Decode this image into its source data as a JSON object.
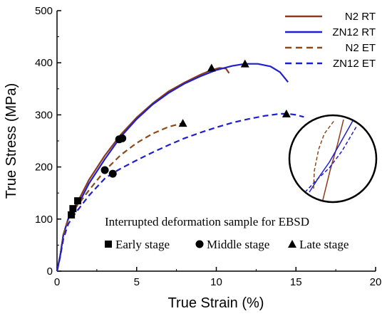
{
  "chart_data": {
    "type": "line",
    "xlabel": "True Strain (%)",
    "ylabel": "True Stress (MPa)",
    "xlim": [
      0,
      20
    ],
    "ylim": [
      0,
      500
    ],
    "xticks": [
      "0",
      "5",
      "10",
      "15",
      "20"
    ],
    "yticks": [
      "0",
      "100",
      "200",
      "300",
      "400",
      "500"
    ],
    "grid": false,
    "legend_position": "top-right",
    "series": [
      {
        "name": "N2 RT",
        "color": "#8b3a1a",
        "dash": "solid",
        "x": [
          0,
          0.2,
          0.4,
          0.7,
          1.0,
          1.5,
          2.0,
          3.0,
          4.0,
          5.0,
          6.0,
          7.0,
          8.0,
          9.0,
          9.7,
          10.2,
          10.6,
          10.8
        ],
        "y": [
          0,
          30,
          70,
          100,
          118,
          145,
          175,
          222,
          262,
          295,
          322,
          345,
          362,
          377,
          386,
          390,
          389,
          380
        ]
      },
      {
        "name": "ZN12 RT",
        "color": "#1f1fcf",
        "dash": "solid",
        "x": [
          0,
          0.2,
          0.4,
          0.7,
          1.0,
          1.5,
          2.0,
          3.0,
          4.0,
          5.0,
          6.0,
          7.0,
          8.0,
          9.0,
          10.0,
          11.0,
          11.8,
          12.6,
          13.4,
          14.0,
          14.5
        ],
        "y": [
          0,
          30,
          70,
          100,
          115,
          138,
          168,
          215,
          258,
          292,
          320,
          342,
          360,
          374,
          386,
          394,
          398,
          398,
          393,
          382,
          363
        ]
      },
      {
        "name": "N2 ET",
        "color": "#8b4a1a",
        "dash": "dashed",
        "x": [
          0,
          0.2,
          0.4,
          0.7,
          1.0,
          1.5,
          2.0,
          3.0,
          4.0,
          5.0,
          6.0,
          7.0,
          7.9
        ],
        "y": [
          0,
          30,
          70,
          100,
          115,
          135,
          155,
          193,
          223,
          246,
          264,
          277,
          284
        ]
      },
      {
        "name": "ZN12 ET",
        "color": "#1f1fcf",
        "dash": "dashed",
        "x": [
          0,
          0.2,
          0.4,
          0.7,
          1.0,
          1.5,
          2.0,
          3.0,
          3.5,
          4.0,
          5.0,
          6.0,
          7.0,
          8.0,
          9.0,
          10.0,
          11.0,
          12.0,
          13.0,
          14.0,
          14.5,
          15.0,
          15.5
        ],
        "y": [
          0,
          28,
          62,
          90,
          105,
          125,
          145,
          178,
          188,
          197,
          213,
          228,
          242,
          255,
          266,
          276,
          285,
          292,
          298,
          302,
          302,
          300,
          296
        ]
      }
    ],
    "markers": [
      {
        "name": "Early stage",
        "shape": "square",
        "points": [
          [
            0.9,
            108
          ],
          [
            1.0,
            120
          ],
          [
            1.3,
            135
          ]
        ]
      },
      {
        "name": "Middle stage",
        "shape": "circle",
        "points": [
          [
            3.0,
            194
          ],
          [
            3.5,
            187
          ],
          [
            3.9,
            253
          ],
          [
            4.1,
            255
          ]
        ]
      },
      {
        "name": "Late stage",
        "shape": "triangle",
        "points": [
          [
            7.9,
            284
          ],
          [
            9.7,
            390
          ],
          [
            11.8,
            398
          ],
          [
            14.4,
            302
          ]
        ]
      }
    ],
    "annotation": "Interrupted deformation sample for EBSD"
  }
}
